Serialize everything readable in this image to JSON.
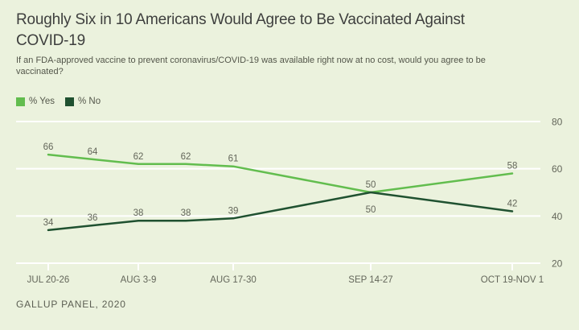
{
  "header": {
    "title": "Roughly Six in 10 Americans Would Agree to Be Vaccinated Against COVID-19",
    "subtitle": "If an FDA-approved vaccine to prevent coronavirus/COVID-19 was available right now at no cost, would you agree to be vaccinated?"
  },
  "footer": {
    "source": "GALLUP PANEL, 2020"
  },
  "colors": {
    "background": "#EBF2DD",
    "gridline": "#FFFFFF",
    "axis_text": "#63665A",
    "value_label_text": "#63665A"
  },
  "chart_data": {
    "type": "line",
    "title": "Roughly Six in 10 Americans Would Agree to Be Vaccinated Against COVID-19",
    "subtitle": "If an FDA-approved vaccine to prevent coronavirus/COVID-19 was available right now at no cost, would you agree to be vaccinated?",
    "x_tick_labels": [
      "JUL 20-26",
      "AUG 3-9",
      "AUG 17-30",
      "SEP 14-27",
      "OCT 19-NOV 1"
    ],
    "x_tick_point_indices": [
      0,
      2,
      4,
      5,
      6
    ],
    "y_ticks": [
      80,
      60,
      40,
      20
    ],
    "y_axis_side": "right",
    "ylim": [
      20,
      80
    ],
    "grid": true,
    "legend_position": "top-left",
    "series": [
      {
        "name": "% Yes",
        "color": "#62BD4E",
        "values": [
          66,
          64,
          62,
          62,
          61,
          50,
          58
        ]
      },
      {
        "name": "% No",
        "color": "#1F5130",
        "values": [
          34,
          36,
          38,
          38,
          39,
          50,
          42
        ]
      }
    ],
    "source": "GALLUP PANEL, 2020"
  }
}
